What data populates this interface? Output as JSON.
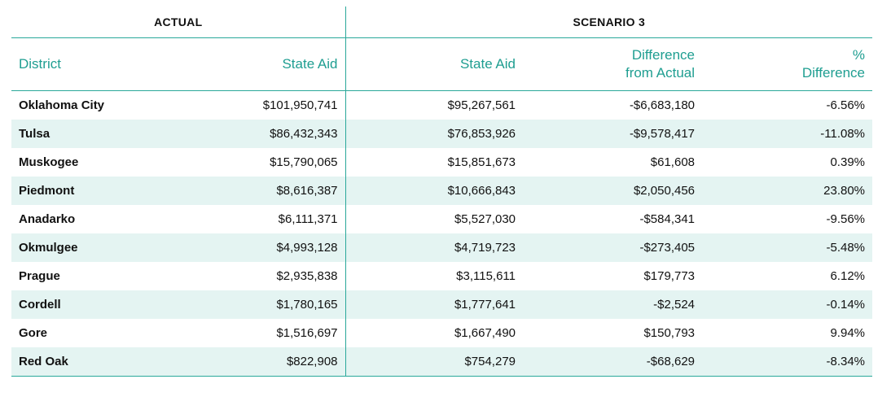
{
  "groups": {
    "actual": "ACTUAL",
    "scenario": "SCENARIO 3"
  },
  "columns": {
    "district": "District",
    "state_aid_actual": "State Aid",
    "state_aid_scenario": "State Aid",
    "difference_line1": "Difference",
    "difference_line2": "from Actual",
    "pct_line1": "%",
    "pct_line2": "Difference"
  },
  "rows": [
    {
      "district": "Oklahoma City",
      "actual": "$101,950,741",
      "scenario": "$95,267,561",
      "difference": "-$6,683,180",
      "pct": "-6.56%"
    },
    {
      "district": "Tulsa",
      "actual": "$86,432,343",
      "scenario": "$76,853,926",
      "difference": "-$9,578,417",
      "pct": "-11.08%"
    },
    {
      "district": "Muskogee",
      "actual": "$15,790,065",
      "scenario": "$15,851,673",
      "difference": "$61,608",
      "pct": "0.39%"
    },
    {
      "district": "Piedmont",
      "actual": "$8,616,387",
      "scenario": "$10,666,843",
      "difference": "$2,050,456",
      "pct": "23.80%"
    },
    {
      "district": "Anadarko",
      "actual": "$6,111,371",
      "scenario": "$5,527,030",
      "difference": "-$584,341",
      "pct": "-9.56%"
    },
    {
      "district": "Okmulgee",
      "actual": "$4,993,128",
      "scenario": "$4,719,723",
      "difference": "-$273,405",
      "pct": "-5.48%"
    },
    {
      "district": "Prague",
      "actual": "$2,935,838",
      "scenario": "$3,115,611",
      "difference": "$179,773",
      "pct": "6.12%"
    },
    {
      "district": "Cordell",
      "actual": "$1,780,165",
      "scenario": "$1,777,641",
      "difference": "-$2,524",
      "pct": "-0.14%"
    },
    {
      "district": "Gore",
      "actual": "$1,516,697",
      "scenario": "$1,667,490",
      "difference": "$150,793",
      "pct": "9.94%"
    },
    {
      "district": "Red Oak",
      "actual": "$822,908",
      "scenario": "$754,279",
      "difference": "-$68,629",
      "pct": "-8.34%"
    }
  ],
  "colors": {
    "accent": "#1f9e91",
    "rule": "#2aa89a",
    "stripe": "#e4f4f2"
  }
}
